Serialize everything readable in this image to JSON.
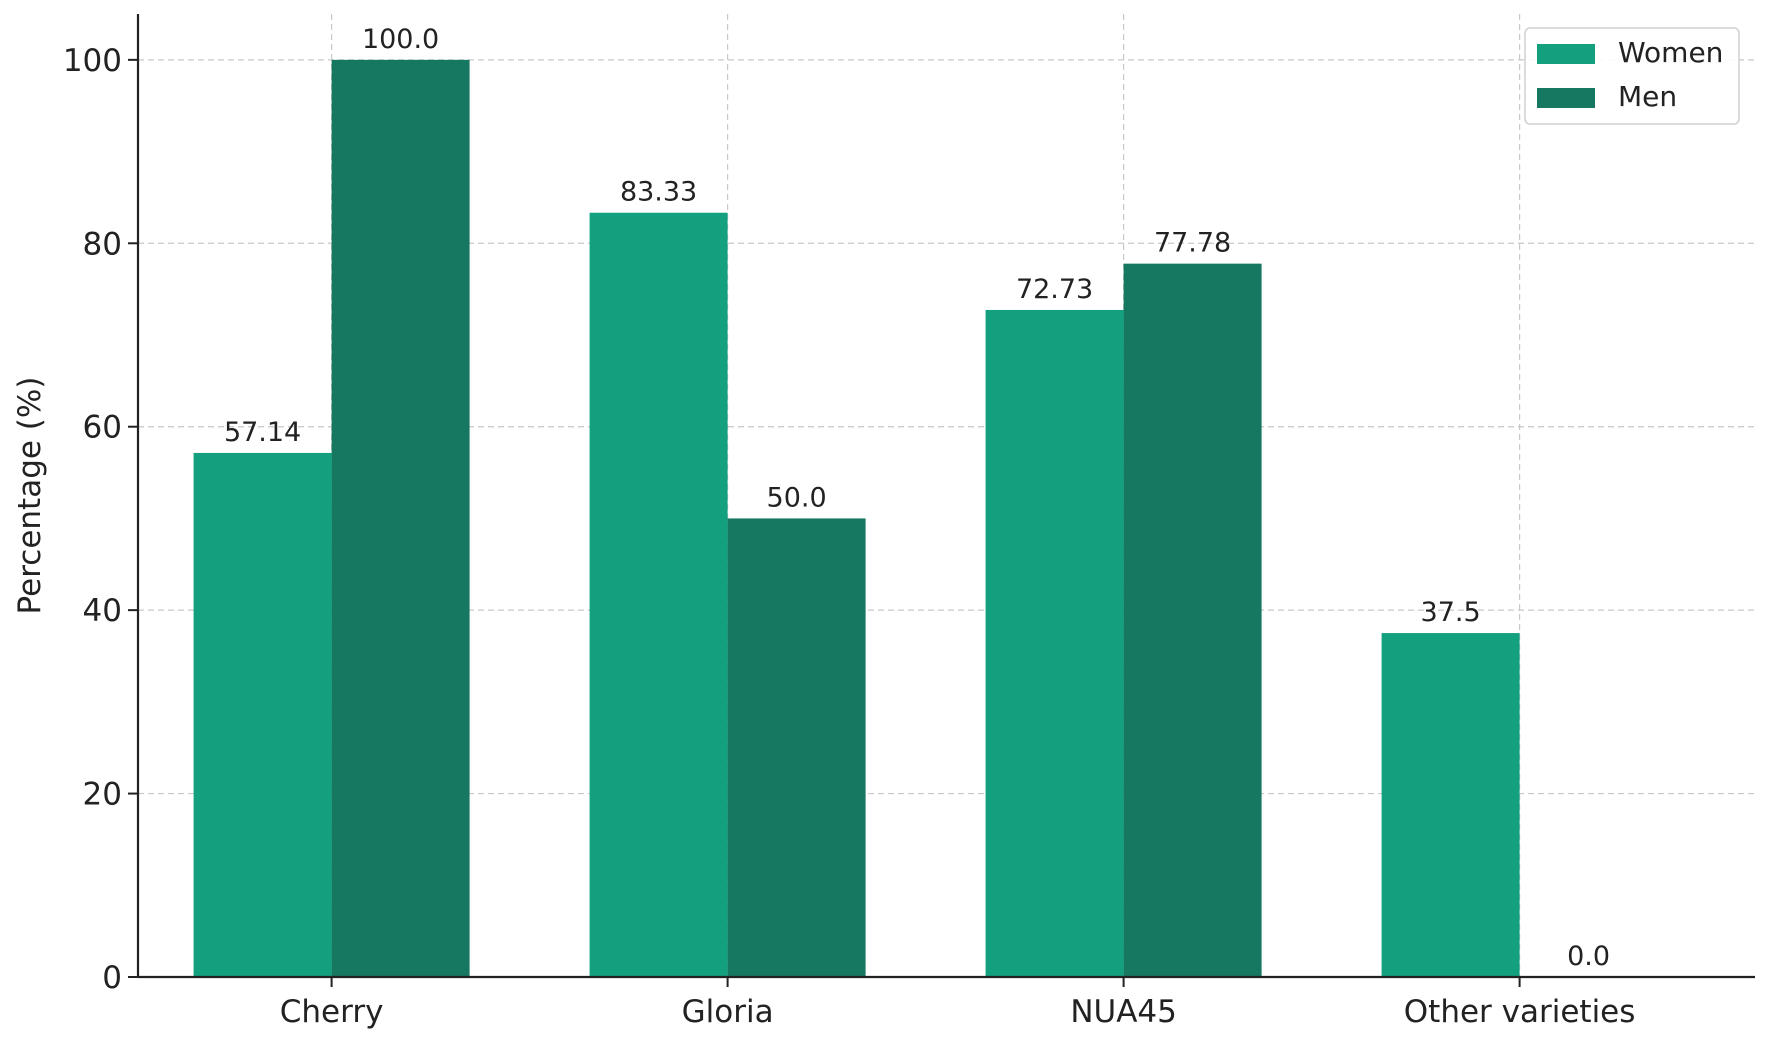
{
  "chart_data": {
    "type": "bar",
    "title": "",
    "xlabel": "",
    "ylabel": "Percentage (%)",
    "categories": [
      "Cherry",
      "Gloria",
      "NUA45",
      "Other varieties"
    ],
    "series": [
      {
        "name": "Women",
        "color": "#12a07e",
        "values": [
          57.14,
          83.33,
          72.73,
          37.5
        ],
        "labels": [
          "57.14",
          "83.33",
          "72.73",
          "37.5"
        ]
      },
      {
        "name": "Men",
        "color": "#167860",
        "values": [
          100.0,
          50.0,
          77.78,
          0.0
        ],
        "labels": [
          "100.0",
          "50.0",
          "77.78",
          "0.0"
        ]
      }
    ],
    "ylim": [
      0,
      105
    ],
    "yticks": [
      0,
      20,
      40,
      60,
      80,
      100
    ],
    "ytick_labels": [
      "0",
      "20",
      "40",
      "60",
      "80",
      "100"
    ],
    "grid": true,
    "legend_position": "top-right"
  }
}
